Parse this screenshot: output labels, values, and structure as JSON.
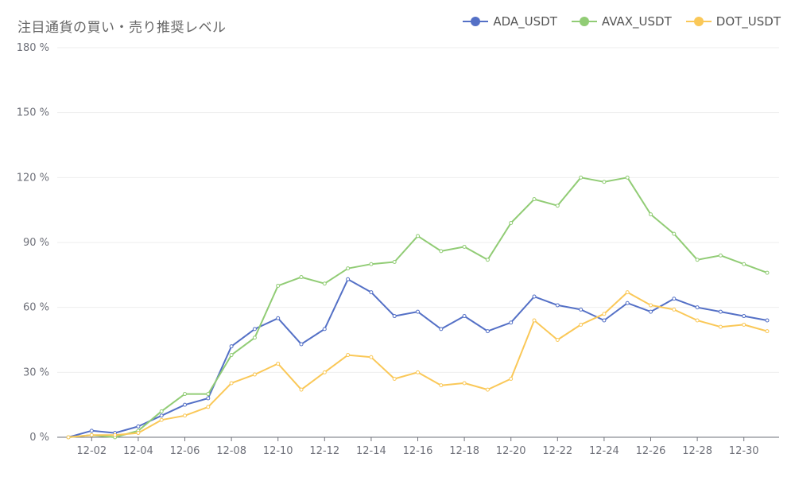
{
  "chart_data": {
    "type": "line",
    "title": "注目通貨の買い・売り推奨レベル",
    "x": [
      "12-01",
      "12-02",
      "12-03",
      "12-04",
      "12-05",
      "12-06",
      "12-07",
      "12-08",
      "12-09",
      "12-10",
      "12-11",
      "12-12",
      "12-13",
      "12-14",
      "12-15",
      "12-16",
      "12-17",
      "12-18",
      "12-19",
      "12-20",
      "12-21",
      "12-22",
      "12-23",
      "12-24",
      "12-25",
      "12-26",
      "12-27",
      "12-28",
      "12-29",
      "12-30",
      "12-31"
    ],
    "x_tick_labels": [
      "12-02",
      "12-04",
      "12-06",
      "12-08",
      "12-10",
      "12-12",
      "12-14",
      "12-16",
      "12-18",
      "12-20",
      "12-22",
      "12-24",
      "12-26",
      "12-28",
      "12-30"
    ],
    "y_tick_labels": [
      "0 %",
      "30 %",
      "60 %",
      "90 %",
      "120 %",
      "150 %",
      "180 %"
    ],
    "ylim": [
      0,
      180
    ],
    "y_unit": "%",
    "grid": true,
    "legend_position": "top-right",
    "series": [
      {
        "name": "ADA_USDT",
        "color": "#5470c6",
        "values": [
          0,
          3,
          2,
          5,
          10,
          15,
          18,
          42,
          50,
          55,
          43,
          50,
          73,
          67,
          56,
          58,
          50,
          56,
          49,
          53,
          65,
          61,
          59,
          54,
          62,
          58,
          64,
          60,
          58,
          56,
          54
        ]
      },
      {
        "name": "AVAX_USDT",
        "color": "#91cc75",
        "values": [
          0,
          1,
          0,
          3,
          12,
          20,
          20,
          38,
          46,
          70,
          74,
          71,
          78,
          80,
          81,
          93,
          86,
          88,
          82,
          99,
          110,
          107,
          120,
          118,
          120,
          103,
          94,
          82,
          84,
          80,
          76
        ]
      },
      {
        "name": "DOT_USDT",
        "color": "#fac858",
        "values": [
          0,
          1,
          1,
          2,
          8,
          10,
          14,
          25,
          29,
          34,
          22,
          30,
          38,
          37,
          27,
          30,
          24,
          25,
          22,
          27,
          54,
          45,
          52,
          57,
          67,
          61,
          59,
          54,
          51,
          52,
          49
        ]
      }
    ]
  }
}
